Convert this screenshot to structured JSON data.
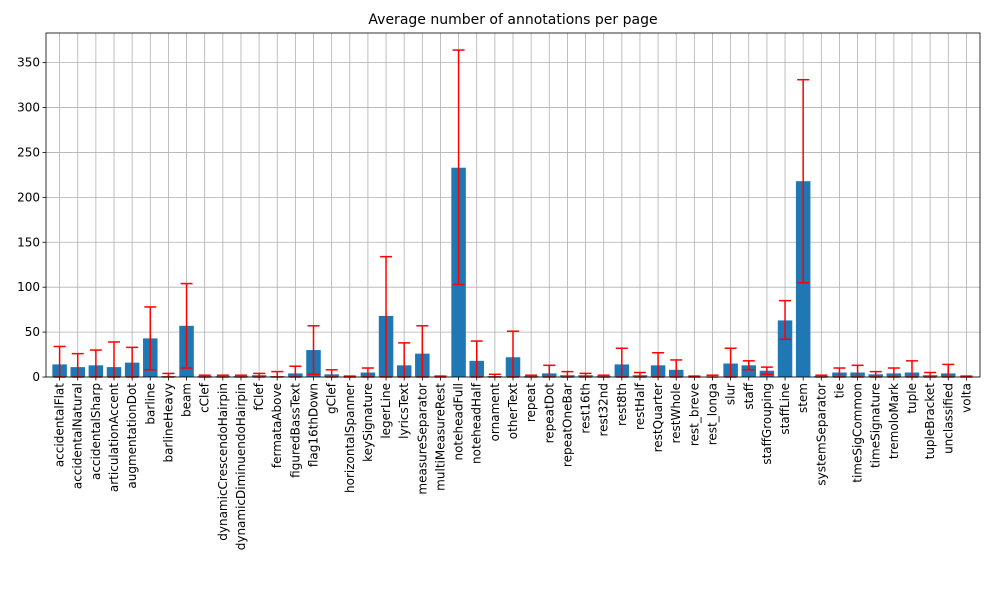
{
  "chart_data": {
    "type": "bar",
    "title": "Average number of annotations per page",
    "xlabel": "",
    "ylabel": "",
    "ylim": [
      0,
      383
    ],
    "yticks": [
      0,
      50,
      100,
      150,
      200,
      250,
      300,
      350
    ],
    "grid": true,
    "colors": {
      "bar": "#1f77b4",
      "error_bar": "#ff0000",
      "grid": "#b0b0b0"
    },
    "categories": [
      "accidentalFlat",
      "accidentalNatural",
      "accidentalSharp",
      "articulationAccent",
      "augmentationDot",
      "barline",
      "barlineHeavy",
      "beam",
      "cClef",
      "dynamicCrescendoHairpin",
      "dynamicDiminuendoHairpin",
      "fClef",
      "fermataAbove",
      "figuredBassText",
      "flag16thDown",
      "gClef",
      "horizontalSpanner",
      "keySignature",
      "legerLine",
      "lyricsText",
      "measureSeparator",
      "multiMeasureRest",
      "noteheadFull",
      "noteheadHalf",
      "ornament",
      "otherText",
      "repeat",
      "repeatDot",
      "repeatOneBar",
      "rest16th",
      "rest32nd",
      "rest8th",
      "restHalf",
      "restQuarter",
      "restWhole",
      "rest_breve",
      "rest_longa",
      "slur",
      "staff",
      "staffGrouping",
      "staffLine",
      "stem",
      "systemSeparator",
      "tie",
      "timeSigCommon",
      "timeSignature",
      "tremoloMark",
      "tuple",
      "tupleBracket",
      "unclassified",
      "volta"
    ],
    "values": [
      14,
      11,
      13,
      11,
      16,
      43,
      1,
      57,
      1,
      1,
      1,
      2,
      1,
      4,
      30,
      3,
      0.5,
      5,
      68,
      13,
      26,
      0.5,
      233,
      18,
      1,
      22,
      1,
      4,
      2,
      2,
      1,
      14,
      2,
      13,
      8,
      0.3,
      0.5,
      15,
      13,
      7,
      63,
      218,
      1,
      5,
      5,
      3,
      4,
      5,
      2,
      4,
      0.5
    ],
    "error_low": [
      0,
      0,
      0,
      0,
      0,
      8,
      0,
      10,
      0,
      0,
      0,
      0,
      0,
      0,
      3,
      0,
      0,
      0,
      0,
      0,
      0,
      0,
      103,
      0,
      0,
      0,
      0,
      0,
      0,
      0,
      0,
      0,
      0,
      0,
      0,
      0,
      0,
      0,
      8,
      3,
      42,
      105,
      0,
      0,
      0,
      0,
      0,
      0,
      0,
      0,
      0
    ],
    "error_high": [
      34,
      26,
      30,
      39,
      33,
      78,
      4,
      104,
      2,
      2,
      2,
      4,
      6,
      12,
      57,
      8,
      1,
      10,
      134,
      38,
      57,
      1,
      364,
      40,
      3,
      51,
      2,
      13,
      6,
      4,
      2,
      32,
      5,
      27,
      19,
      1,
      2,
      32,
      18,
      11,
      85,
      331,
      2,
      10,
      13,
      6,
      10,
      18,
      5,
      14,
      1
    ]
  }
}
